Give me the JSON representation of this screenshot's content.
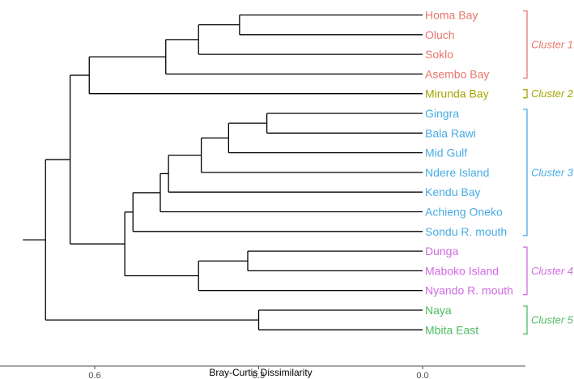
{
  "chart_data": {
    "type": "dendrogram",
    "orientation": "horizontal",
    "xlabel": "Bray-Curtis Dissimilarity",
    "ylabel": "",
    "xlim": [
      0.79,
      -0.17
    ],
    "x_ticks": [
      {
        "value": 0.6,
        "label": "0.6"
      },
      {
        "value": 0.3,
        "label": "0.3"
      },
      {
        "value": 0.0,
        "label": "0.0"
      }
    ],
    "leaves": [
      {
        "name": "Homa Bay",
        "cluster": "c1"
      },
      {
        "name": "Oluch",
        "cluster": "c1"
      },
      {
        "name": "Soklo",
        "cluster": "c1"
      },
      {
        "name": "Asembo Bay",
        "cluster": "c1"
      },
      {
        "name": "Mirunda Bay",
        "cluster": "c2"
      },
      {
        "name": "Gingra",
        "cluster": "c3"
      },
      {
        "name": "Bala Rawi",
        "cluster": "c3"
      },
      {
        "name": "Mid Gulf",
        "cluster": "c3"
      },
      {
        "name": "Ndere Island",
        "cluster": "c3"
      },
      {
        "name": "Kendu Bay",
        "cluster": "c3"
      },
      {
        "name": "Achieng Oneko",
        "cluster": "c3"
      },
      {
        "name": "Sondu R. mouth",
        "cluster": "c3"
      },
      {
        "name": "Dunga",
        "cluster": "c4"
      },
      {
        "name": "Maboko Island",
        "cluster": "c4"
      },
      {
        "name": "Nyando R. mouth",
        "cluster": "c4"
      },
      {
        "name": "Naya",
        "cluster": "c5"
      },
      {
        "name": "Mbita East",
        "cluster": "c5"
      }
    ],
    "merges": [
      {
        "id": "m1",
        "children": [
          "Homa Bay",
          "Oluch"
        ],
        "height": 0.335
      },
      {
        "id": "m2",
        "children": [
          "m1",
          "Soklo"
        ],
        "height": 0.41
      },
      {
        "id": "m3",
        "children": [
          "m2",
          "Asembo Bay"
        ],
        "height": 0.47
      },
      {
        "id": "m4",
        "children": [
          "m3",
          "Mirunda Bay"
        ],
        "height": 0.61
      },
      {
        "id": "m5",
        "children": [
          "Gingra",
          "Bala Rawi"
        ],
        "height": 0.285
      },
      {
        "id": "m6",
        "children": [
          "m5",
          "Mid Gulf"
        ],
        "height": 0.355
      },
      {
        "id": "m7",
        "children": [
          "m6",
          "Ndere Island"
        ],
        "height": 0.405
      },
      {
        "id": "m8",
        "children": [
          "m7",
          "Kendu Bay"
        ],
        "height": 0.465
      },
      {
        "id": "m9",
        "children": [
          "m8",
          "Achieng Oneko"
        ],
        "height": 0.48
      },
      {
        "id": "m10",
        "children": [
          "m9",
          "Sondu R. mouth"
        ],
        "height": 0.53
      },
      {
        "id": "m11",
        "children": [
          "Dunga",
          "Maboko Island"
        ],
        "height": 0.32
      },
      {
        "id": "m12",
        "children": [
          "m11",
          "Nyando R. mouth"
        ],
        "height": 0.41
      },
      {
        "id": "m13",
        "children": [
          "m10",
          "m12"
        ],
        "height": 0.545
      },
      {
        "id": "m14",
        "children": [
          "m4",
          "m13"
        ],
        "height": 0.645
      },
      {
        "id": "m15",
        "children": [
          "Naya",
          "Mbita East"
        ],
        "height": 0.3
      },
      {
        "id": "m16",
        "children": [
          "m14",
          "m15"
        ],
        "height": 0.69
      }
    ],
    "clusters": [
      {
        "id": "c1",
        "label": "Cluster 1",
        "color": "#e8766d"
      },
      {
        "id": "c2",
        "label": "Cluster 2",
        "color": "#a3a500"
      },
      {
        "id": "c3",
        "label": "Cluster 3",
        "color": "#48ace4"
      },
      {
        "id": "c4",
        "label": "Cluster 4",
        "color": "#d26be3"
      },
      {
        "id": "c5",
        "label": "Cluster 5",
        "color": "#4dbb63"
      }
    ],
    "tree_color": "#000000",
    "axis_color": "#4d4d4d",
    "grid": false,
    "legend": "none"
  }
}
